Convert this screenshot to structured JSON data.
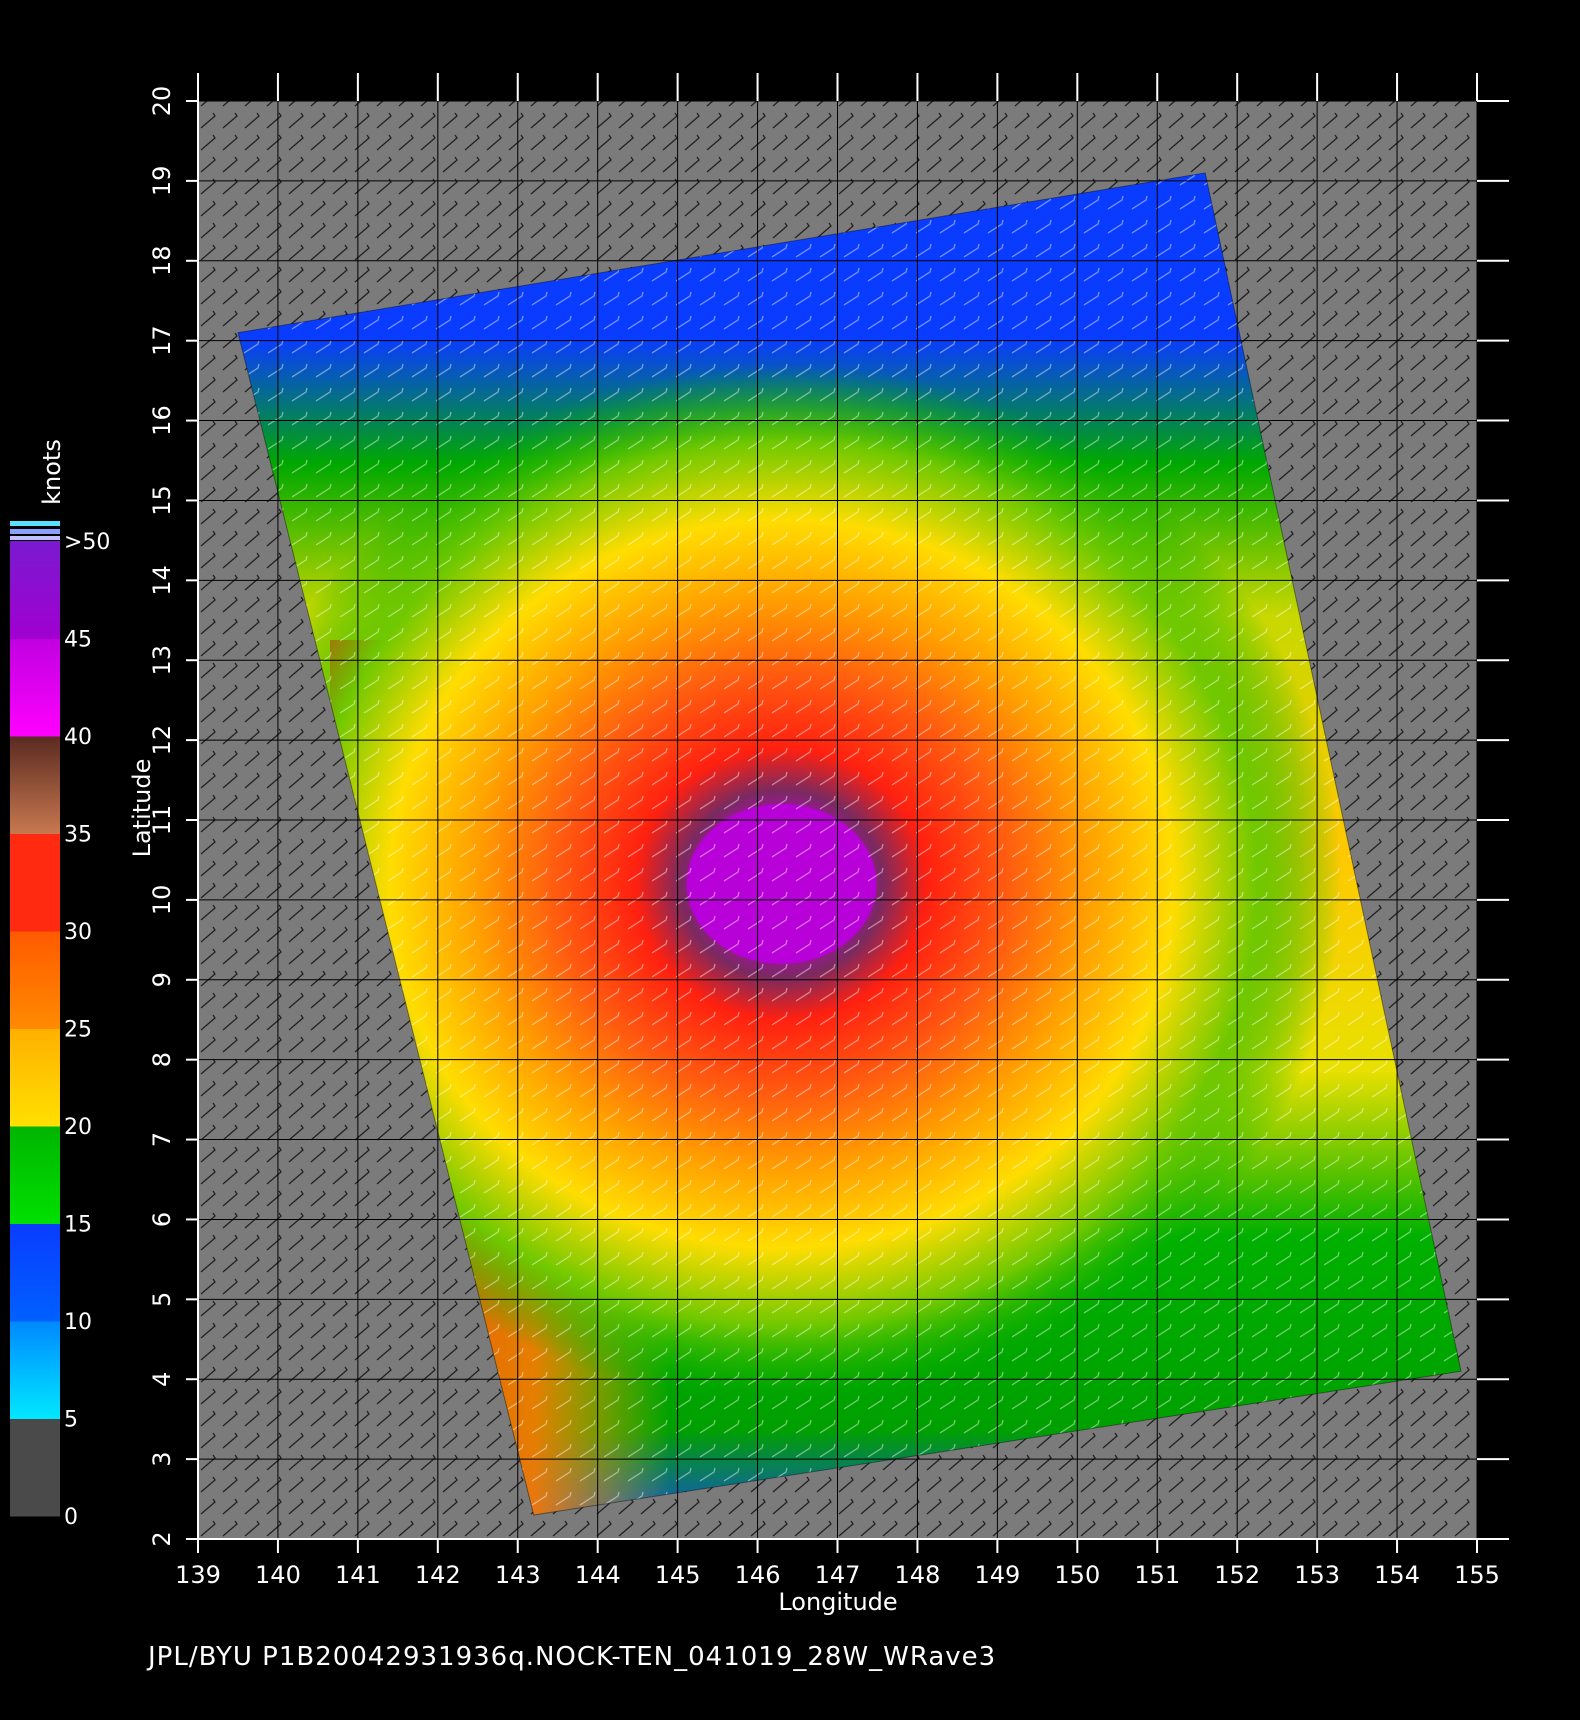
{
  "colorbar": {
    "unit": "knots",
    "levels": [
      "0",
      "5",
      "10",
      "15",
      "20",
      "25",
      "30",
      "35",
      "40",
      "45",
      ">50"
    ],
    "colors": {
      "calm": "#4a4a4a",
      "low": "#00e8ff",
      "blue": "#0a3cff",
      "green": "#00b400",
      "yellow": "#ffe000",
      "orange": "#ff8a00",
      "red": "#ff2a10",
      "brown": "#5a2a20",
      "magenta": "#ff00ff",
      "purple": "#7a1ad0"
    }
  },
  "axes": {
    "xlabel": "Longitude",
    "ylabel": "Latitude",
    "xticks": [
      "139",
      "140",
      "141",
      "142",
      "143",
      "144",
      "145",
      "146",
      "147",
      "148",
      "149",
      "150",
      "151",
      "152",
      "153",
      "154",
      "155"
    ],
    "yticks": [
      "2",
      "3",
      "4",
      "5",
      "6",
      "7",
      "8",
      "9",
      "10",
      "11",
      "12",
      "13",
      "14",
      "15",
      "16",
      "17",
      "18",
      "19",
      "20"
    ],
    "lon_range": [
      139,
      155
    ],
    "lat_range": [
      2,
      20
    ]
  },
  "storm_center": {
    "lon": 146.3,
    "lat": 10.2
  },
  "swath_corners": [
    {
      "lon": 139.5,
      "lat": 17.1
    },
    {
      "lon": 151.6,
      "lat": 19.1
    },
    {
      "lon": 154.8,
      "lat": 4.1
    },
    {
      "lon": 143.2,
      "lat": 2.3
    }
  ],
  "footer": "JPL/BYU  P1B20042931936q.NOCK-TEN_041019_28W_WRave3"
}
